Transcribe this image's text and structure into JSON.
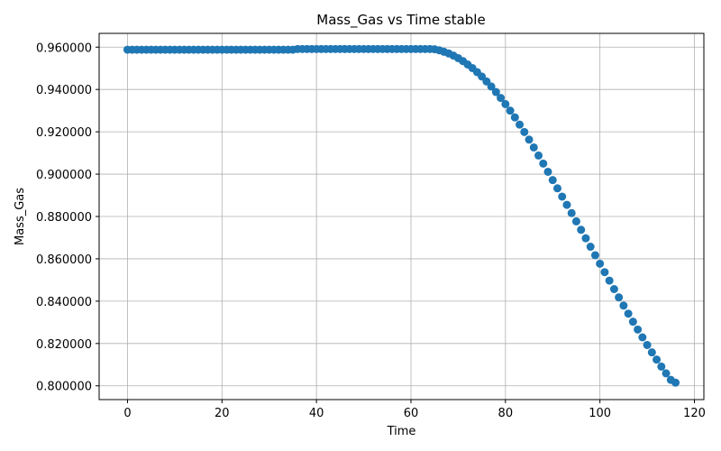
{
  "chart_data": {
    "type": "scatter",
    "title": "Mass_Gas vs Time stable",
    "xlabel": "Time",
    "ylabel": "Mass_Gas",
    "xlim": [
      -6,
      122
    ],
    "ylim": [
      0.7935,
      0.9665
    ],
    "xticks": [
      0,
      20,
      40,
      60,
      80,
      100,
      120
    ],
    "yticks": [
      0.8,
      0.82,
      0.84,
      0.86,
      0.88,
      0.9,
      0.92,
      0.94,
      0.96
    ],
    "ytick_labels": [
      "0.800000",
      "0.820000",
      "0.840000",
      "0.860000",
      "0.880000",
      "0.900000",
      "0.920000",
      "0.940000",
      "0.960000"
    ],
    "xtick_labels": [
      "0",
      "20",
      "40",
      "60",
      "80",
      "100",
      "120"
    ],
    "grid": true,
    "marker_color": "#1f77b4",
    "x": [
      0,
      1,
      2,
      3,
      4,
      5,
      6,
      7,
      8,
      9,
      10,
      11,
      12,
      13,
      14,
      15,
      16,
      17,
      18,
      19,
      20,
      21,
      22,
      23,
      24,
      25,
      26,
      27,
      28,
      29,
      30,
      31,
      32,
      33,
      34,
      35,
      36,
      37,
      38,
      39,
      40,
      41,
      42,
      43,
      44,
      45,
      46,
      47,
      48,
      49,
      50,
      51,
      52,
      53,
      54,
      55,
      56,
      57,
      58,
      59,
      60,
      61,
      62,
      63,
      64,
      65,
      66,
      67,
      68,
      69,
      70,
      71,
      72,
      73,
      74,
      75,
      76,
      77,
      78,
      79,
      80,
      81,
      82,
      83,
      84,
      85,
      86,
      87,
      88,
      89,
      90,
      91,
      92,
      93,
      94,
      95,
      96,
      97,
      98,
      99,
      100,
      101,
      102,
      103,
      104,
      105,
      106,
      107,
      108,
      109,
      110,
      111,
      112,
      113,
      114,
      115,
      116
    ],
    "y": [
      0.9588,
      0.9588,
      0.9588,
      0.9588,
      0.9588,
      0.9588,
      0.9588,
      0.9588,
      0.9588,
      0.9588,
      0.9588,
      0.9588,
      0.9588,
      0.9588,
      0.9588,
      0.9588,
      0.9588,
      0.9588,
      0.9588,
      0.9588,
      0.9588,
      0.9588,
      0.9588,
      0.9588,
      0.9588,
      0.9588,
      0.9588,
      0.9588,
      0.9588,
      0.9588,
      0.9588,
      0.9588,
      0.9588,
      0.9588,
      0.9588,
      0.9588,
      0.9591,
      0.9591,
      0.9591,
      0.9591,
      0.9591,
      0.9591,
      0.9591,
      0.9591,
      0.9591,
      0.9591,
      0.9591,
      0.9591,
      0.9591,
      0.9591,
      0.9591,
      0.9591,
      0.9591,
      0.9591,
      0.9591,
      0.9591,
      0.9591,
      0.9591,
      0.9591,
      0.9591,
      0.9591,
      0.9591,
      0.9591,
      0.9591,
      0.9591,
      0.959,
      0.9585,
      0.9578,
      0.957,
      0.956,
      0.9548,
      0.9534,
      0.9518,
      0.9501,
      0.9482,
      0.9461,
      0.9438,
      0.9414,
      0.9388,
      0.936,
      0.9331,
      0.93,
      0.9268,
      0.9234,
      0.9199,
      0.9163,
      0.9126,
      0.9088,
      0.905,
      0.9011,
      0.8972,
      0.8933,
      0.8894,
      0.8855,
      0.8816,
      0.8777,
      0.8737,
      0.8697,
      0.8657,
      0.8617,
      0.8577,
      0.8537,
      0.8497,
      0.8457,
      0.8418,
      0.8379,
      0.8341,
      0.8303,
      0.8266,
      0.8229,
      0.8193,
      0.8158,
      0.8124,
      0.8091,
      0.8059,
      0.8028,
      0.8015
    ]
  }
}
